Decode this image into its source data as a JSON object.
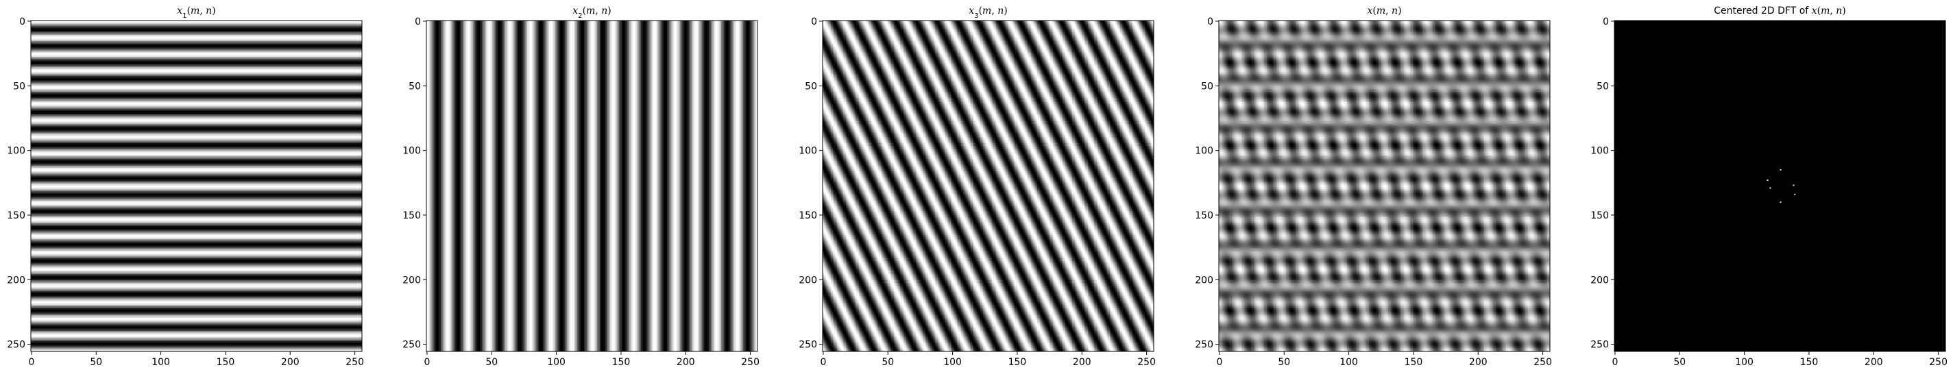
{
  "chart_data": [
    {
      "type": "heatmap",
      "title": "x_1(m, n)",
      "title_parts": [
        {
          "t": "x",
          "i": true
        },
        {
          "t": "1",
          "sub": true
        },
        {
          "t": "(",
          "i": false
        },
        {
          "t": "m",
          "i": true
        },
        {
          "t": ", ",
          "i": false
        },
        {
          "t": "n",
          "i": true
        },
        {
          "t": ")",
          "i": false
        }
      ],
      "pattern": "horizontal-stripes",
      "fx": 0,
      "fy": 0.078125,
      "colormap": "gray",
      "xlim": [
        0,
        256
      ],
      "ylim": [
        256,
        0
      ],
      "xticks": [
        0,
        50,
        100,
        150,
        200,
        250
      ],
      "yticks": [
        0,
        50,
        100,
        150,
        200,
        250
      ]
    },
    {
      "type": "heatmap",
      "title": "x_2(m, n)",
      "title_parts": [
        {
          "t": "x",
          "i": true
        },
        {
          "t": "2",
          "sub": true
        },
        {
          "t": "(",
          "i": false
        },
        {
          "t": "m",
          "i": true
        },
        {
          "t": ", ",
          "i": false
        },
        {
          "t": "n",
          "i": true
        },
        {
          "t": ")",
          "i": false
        }
      ],
      "pattern": "vertical-stripes",
      "fx": 0.0625,
      "fy": 0,
      "colormap": "gray",
      "xlim": [
        0,
        256
      ],
      "ylim": [
        256,
        0
      ],
      "xticks": [
        0,
        50,
        100,
        150,
        200,
        250
      ],
      "yticks": [
        0,
        50,
        100,
        150,
        200,
        250
      ]
    },
    {
      "type": "heatmap",
      "title": "x_3(m, n)",
      "title_parts": [
        {
          "t": "x",
          "i": true
        },
        {
          "t": "3",
          "sub": true
        },
        {
          "t": "(",
          "i": false
        },
        {
          "t": "m",
          "i": true
        },
        {
          "t": ", ",
          "i": false
        },
        {
          "t": "n",
          "i": true
        },
        {
          "t": ")",
          "i": false
        }
      ],
      "pattern": "diagonal-stripes",
      "fx": 0.0625,
      "fy": 0.03125,
      "colormap": "gray",
      "xlim": [
        0,
        256
      ],
      "ylim": [
        256,
        0
      ],
      "xticks": [
        0,
        50,
        100,
        150,
        200,
        250
      ],
      "yticks": [
        0,
        50,
        100,
        150,
        200,
        250
      ]
    },
    {
      "type": "heatmap",
      "title": "x(m, n)",
      "title_parts": [
        {
          "t": "x",
          "i": true
        },
        {
          "t": "(",
          "i": false
        },
        {
          "t": "m",
          "i": true
        },
        {
          "t": ", ",
          "i": false
        },
        {
          "t": "n",
          "i": true
        },
        {
          "t": ")",
          "i": false
        }
      ],
      "pattern": "sum-of-sinusoids",
      "colormap": "gray",
      "xlim": [
        0,
        256
      ],
      "ylim": [
        256,
        0
      ],
      "xticks": [
        0,
        50,
        100,
        150,
        200,
        250
      ],
      "yticks": [
        0,
        50,
        100,
        150,
        200,
        250
      ]
    },
    {
      "type": "heatmap",
      "title": "Centered 2D DFT of x(m, n)",
      "title_parts": [
        {
          "t": "Centered 2D DFT of ",
          "i": false,
          "plain": true
        },
        {
          "t": "x",
          "i": true
        },
        {
          "t": "(",
          "i": false
        },
        {
          "t": "m",
          "i": true
        },
        {
          "t": ", ",
          "i": false
        },
        {
          "t": "n",
          "i": true
        },
        {
          "t": ")",
          "i": false
        }
      ],
      "pattern": "spectrum-peaks",
      "colormap": "gray",
      "background": "#000000",
      "peaks": [
        [
          128,
          115
        ],
        [
          118,
          123
        ],
        [
          120,
          129
        ],
        [
          138,
          127
        ],
        [
          139,
          134
        ],
        [
          128,
          140
        ]
      ],
      "xlim": [
        0,
        256
      ],
      "ylim": [
        256,
        0
      ],
      "xticks": [
        0,
        50,
        100,
        150,
        200,
        250
      ],
      "yticks": [
        0,
        50,
        100,
        150,
        200,
        250
      ]
    }
  ]
}
